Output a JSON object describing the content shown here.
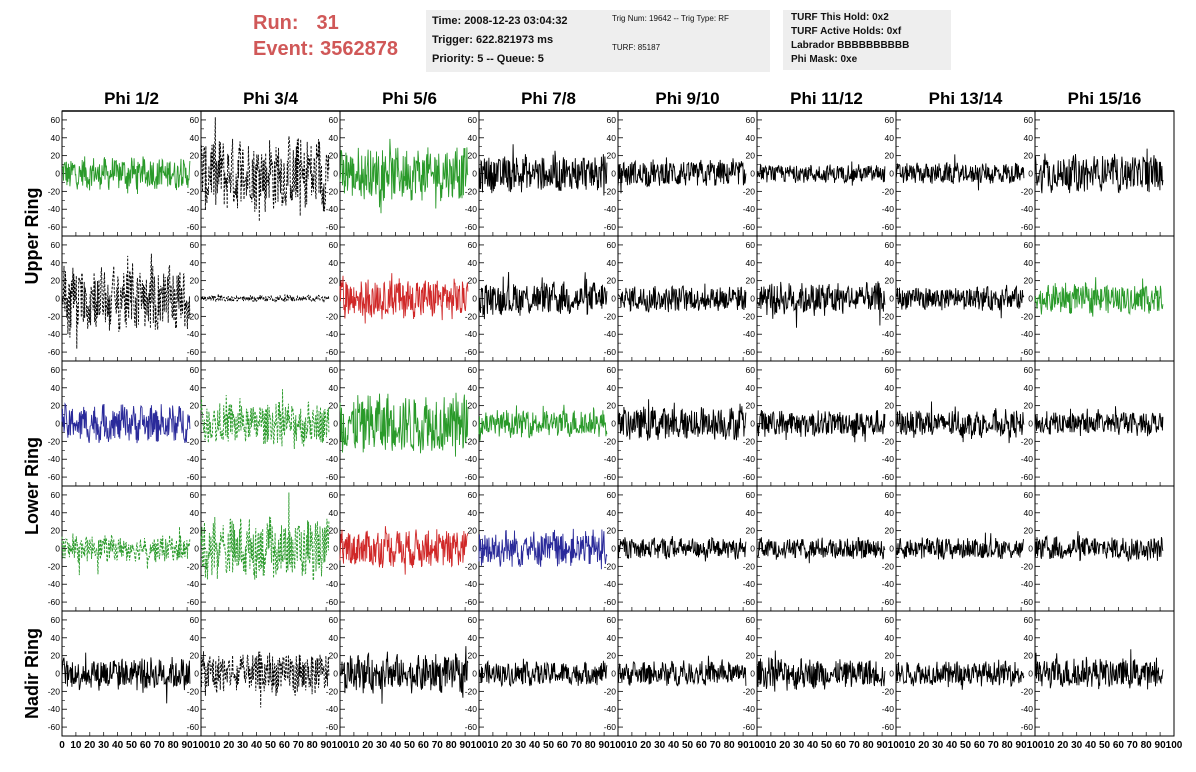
{
  "header": {
    "run_label": "Run:",
    "run_value": "31",
    "event_label": "Event:",
    "event_value": "3562878"
  },
  "info_time": {
    "time": "Time: 2008-12-23 03:04:32",
    "trigger": "Trigger: 622.821973 ms",
    "priority": "Priority: 5 -- Queue: 5"
  },
  "info_trig": {
    "trig": "Trig Num: 19642 -- Trig Type: RF",
    "turf": "TURF: 85187"
  },
  "info_turf": {
    "hold": "TURF This Hold: 0x2",
    "active": "TURF Active Holds: 0xf",
    "labrador": "Labrador BBBBBBBBBB",
    "mask": "Phi Mask: 0xe"
  },
  "chart_data": {
    "type": "line",
    "column_titles": [
      "Phi 1/2",
      "Phi 3/4",
      "Phi 5/6",
      "Phi 7/8",
      "Phi 9/10",
      "Phi 11/12",
      "Phi 13/14",
      "Phi 15/16"
    ],
    "ring_labels": [
      {
        "text": "Upper Ring",
        "rows": [
          0,
          1
        ]
      },
      {
        "text": "Lower Ring",
        "rows": [
          2,
          3
        ]
      },
      {
        "text": "Nadir Ring",
        "rows": [
          4
        ]
      }
    ],
    "ylim": [
      -70,
      70
    ],
    "xlim": [
      0,
      100
    ],
    "y_ticks": [
      "-60",
      "-40",
      "-20",
      "0",
      "20",
      "40",
      "60"
    ],
    "x_ticks_first": [
      "0",
      "10",
      "20",
      "30",
      "40",
      "50",
      "60",
      "70",
      "80",
      "90",
      "100"
    ],
    "x_ticks_mid": [
      "10",
      "20",
      "30",
      "40",
      "50",
      "60",
      "70",
      "80",
      "90",
      "100"
    ],
    "x_tick_values_mid": [
      10,
      20,
      30,
      40,
      50,
      60,
      70,
      80,
      90,
      100
    ],
    "trace_style": "noise waveform, 0–90 ns",
    "colors": {
      "black": "#000000",
      "green": "#2a9a2a",
      "red": "#d02828",
      "blue": "#2a2a9a"
    },
    "panels": [
      [
        {
          "color": "green",
          "dashed": false,
          "amp": 22
        },
        {
          "color": "black",
          "dashed": true,
          "amp": 50
        },
        {
          "color": "green",
          "dashed": false,
          "amp": 35
        },
        {
          "color": "black",
          "dashed": false,
          "amp": 25
        },
        {
          "color": "black",
          "dashed": false,
          "amp": 18
        },
        {
          "color": "black",
          "dashed": false,
          "amp": 12
        },
        {
          "color": "black",
          "dashed": false,
          "amp": 14
        },
        {
          "color": "black",
          "dashed": false,
          "amp": 25
        }
      ],
      [
        {
          "color": "black",
          "dashed": true,
          "amp": 45
        },
        {
          "color": "black",
          "dashed": true,
          "amp": 4
        },
        {
          "color": "red",
          "dashed": false,
          "amp": 28
        },
        {
          "color": "black",
          "dashed": false,
          "amp": 22
        },
        {
          "color": "black",
          "dashed": false,
          "amp": 18
        },
        {
          "color": "black",
          "dashed": false,
          "amp": 22
        },
        {
          "color": "black",
          "dashed": false,
          "amp": 16
        },
        {
          "color": "green",
          "dashed": false,
          "amp": 20
        }
      ],
      [
        {
          "color": "blue",
          "dashed": false,
          "amp": 25
        },
        {
          "color": "green",
          "dashed": true,
          "amp": 28
        },
        {
          "color": "green",
          "dashed": false,
          "amp": 40
        },
        {
          "color": "green",
          "dashed": false,
          "amp": 18
        },
        {
          "color": "black",
          "dashed": false,
          "amp": 22
        },
        {
          "color": "black",
          "dashed": false,
          "amp": 18
        },
        {
          "color": "black",
          "dashed": false,
          "amp": 18
        },
        {
          "color": "black",
          "dashed": false,
          "amp": 16
        }
      ],
      [
        {
          "color": "green",
          "dashed": true,
          "amp": 18
        },
        {
          "color": "green",
          "dashed": true,
          "amp": 40
        },
        {
          "color": "red",
          "dashed": false,
          "amp": 25
        },
        {
          "color": "blue",
          "dashed": false,
          "amp": 25
        },
        {
          "color": "black",
          "dashed": false,
          "amp": 14
        },
        {
          "color": "black",
          "dashed": false,
          "amp": 14
        },
        {
          "color": "black",
          "dashed": false,
          "amp": 14
        },
        {
          "color": "black",
          "dashed": false,
          "amp": 16
        }
      ],
      [
        {
          "color": "black",
          "dashed": false,
          "amp": 22
        },
        {
          "color": "black",
          "dashed": true,
          "amp": 30
        },
        {
          "color": "black",
          "dashed": false,
          "amp": 25
        },
        {
          "color": "black",
          "dashed": false,
          "amp": 16
        },
        {
          "color": "black",
          "dashed": false,
          "amp": 16
        },
        {
          "color": "black",
          "dashed": false,
          "amp": 20
        },
        {
          "color": "black",
          "dashed": false,
          "amp": 16
        },
        {
          "color": "black",
          "dashed": false,
          "amp": 20
        }
      ]
    ]
  }
}
